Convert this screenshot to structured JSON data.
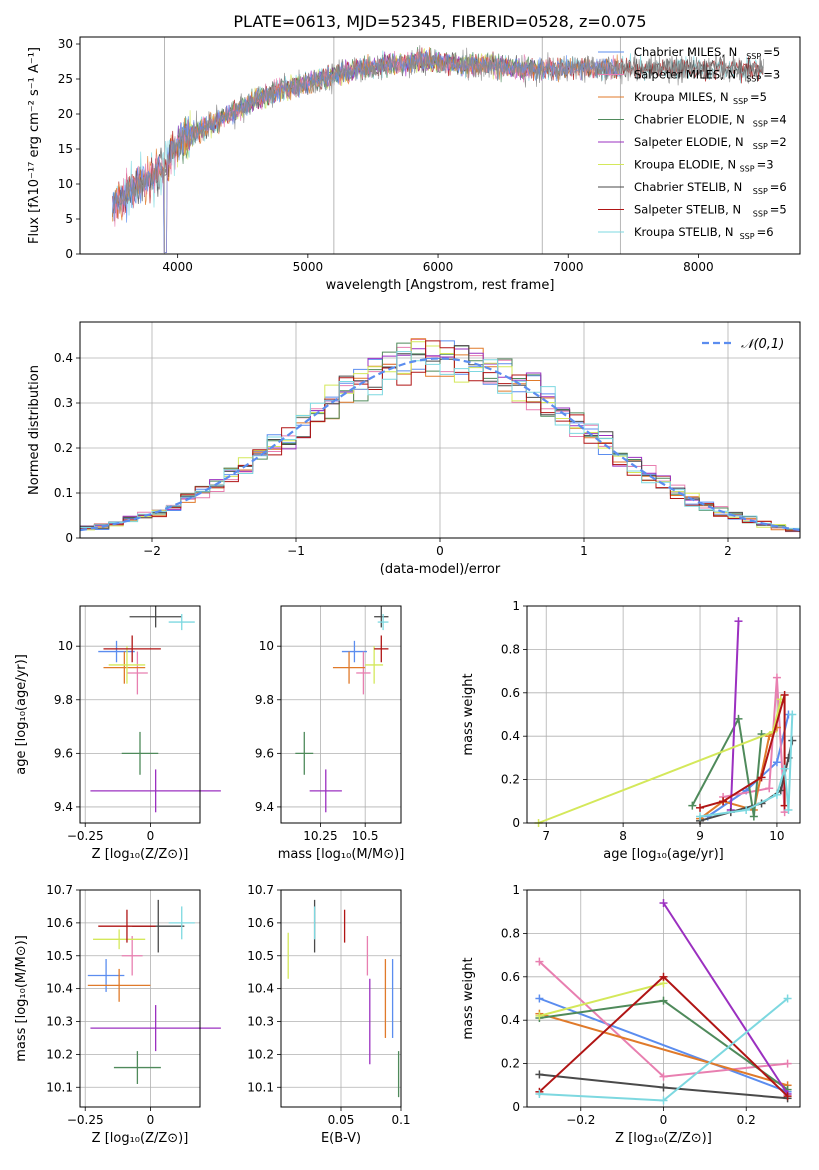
{
  "figure": {
    "title": "PLATE=0613, MJD=52345, FIBERID=0528, z=0.075"
  },
  "colors": {
    "Chabrier MILES": "#5b8def",
    "Salpeter MILES": "#e87fb0",
    "Kroupa MILES": "#e07a2a",
    "Chabrier ELODIE": "#4f8a5b",
    "Salpeter ELODIE": "#9b30c0",
    "Kroupa ELODIE": "#d4e85a",
    "Chabrier STELIB": "#4a4a4a",
    "Salpeter STELIB": "#b01515",
    "Kroupa STELIB": "#7dd8e0"
  },
  "chart_data": [
    {
      "id": "spectrum",
      "type": "line",
      "xlabel": "wavelength [Angstrom, rest frame]",
      "ylabel": "Flux [fλ10⁻¹⁷ erg cm⁻² s⁻¹ A⁻¹]",
      "xlim": [
        3250,
        8780
      ],
      "ylim": [
        0,
        31
      ],
      "xticks": [
        4000,
        5000,
        6000,
        7000,
        8000
      ],
      "yticks": [
        0,
        5,
        10,
        15,
        20,
        25,
        30
      ],
      "legend_position": "right",
      "grid": false,
      "legend": [
        {
          "name": "Chabrier MILES",
          "nssp": "5"
        },
        {
          "name": "Salpeter MILES",
          "nssp": "3"
        },
        {
          "name": "Kroupa MILES",
          "nssp": "5"
        },
        {
          "name": "Chabrier ELODIE",
          "nssp": "4"
        },
        {
          "name": "Salpeter ELODIE",
          "nssp": "2"
        },
        {
          "name": "Kroupa ELODIE",
          "nssp": "3"
        },
        {
          "name": "Chabrier STELIB",
          "nssp": "6"
        },
        {
          "name": "Salpeter STELIB",
          "nssp": "5"
        },
        {
          "name": "Kroupa STELIB",
          "nssp": "6"
        }
      ],
      "data_continuum": {
        "x": [
          3500,
          3700,
          3900,
          4000,
          4200,
          4400,
          4600,
          4800,
          5000,
          5200,
          5400,
          5600,
          5800,
          6000,
          6200,
          6400,
          6600,
          6800,
          7000,
          7200,
          7400
        ],
        "y": [
          7,
          10,
          12,
          16,
          18,
          20,
          22,
          23.5,
          24.5,
          25.5,
          26.5,
          27,
          27.5,
          27.5,
          27,
          27,
          26.5,
          26.5,
          26.5,
          26.5,
          26.5
        ]
      },
      "model_ranges": [
        {
          "name": "MILES",
          "x": [
            3500,
            7400
          ]
        },
        {
          "name": "ELODIE",
          "x": [
            4000,
            6800
          ]
        },
        {
          "name": "STELIB",
          "x": [
            3500,
            8500
          ]
        }
      ]
    },
    {
      "id": "residuals",
      "type": "histogram",
      "xlabel": "(data-model)/error",
      "ylabel": "Normed distribution",
      "xlim": [
        -2.5,
        2.5
      ],
      "ylim": [
        0,
        0.48
      ],
      "xticks": [
        -2,
        -1,
        0,
        1,
        2
      ],
      "yticks": [
        0,
        0.1,
        0.2,
        0.3,
        0.4
      ],
      "grid": true,
      "legend_label": "𝒩(0,1)",
      "reference": {
        "name": "N(0,1)",
        "mean": 0,
        "sigma": 1
      }
    },
    {
      "id": "age_vs_Z",
      "type": "errorbar",
      "xlabel": "Z [log₁₀(Z/Z⊙)]",
      "ylabel": "age  [log₁₀(age/yr)]",
      "xlim": [
        -0.27,
        0.19
      ],
      "ylim": [
        9.34,
        10.15
      ],
      "xticks": [
        -0.25,
        0.0
      ],
      "yticks": [
        9.4,
        9.6,
        9.8,
        10.0
      ],
      "grid": true,
      "points": [
        {
          "model": "Chabrier MILES",
          "x": -0.13,
          "y": 9.98,
          "xerr": 0.07,
          "yerr": 0.04
        },
        {
          "model": "Salpeter MILES",
          "x": -0.05,
          "y": 9.9,
          "xerr": 0.04,
          "yerr": 0.08
        },
        {
          "model": "Kroupa MILES",
          "x": -0.1,
          "y": 9.92,
          "xerr": 0.08,
          "yerr": 0.06
        },
        {
          "model": "Chabrier ELODIE",
          "x": -0.04,
          "y": 9.6,
          "xerr": 0.07,
          "yerr": 0.08
        },
        {
          "model": "Salpeter ELODIE",
          "x": 0.02,
          "y": 9.46,
          "xerr": 0.25,
          "yerr": 0.08
        },
        {
          "model": "Kroupa ELODIE",
          "x": -0.09,
          "y": 9.93,
          "xerr": 0.07,
          "yerr": 0.07
        },
        {
          "model": "Chabrier STELIB",
          "x": 0.02,
          "y": 10.11,
          "xerr": 0.1,
          "yerr": 0.04
        },
        {
          "model": "Salpeter STELIB",
          "x": -0.07,
          "y": 9.99,
          "xerr": 0.11,
          "yerr": 0.05
        },
        {
          "model": "Kroupa STELIB",
          "x": 0.12,
          "y": 10.09,
          "xerr": 0.05,
          "yerr": 0.03
        }
      ]
    },
    {
      "id": "age_vs_mass",
      "type": "errorbar",
      "xlabel": "mass [log₁₀(M/M⊙)]",
      "ylabel": "",
      "xlim": [
        10.03,
        10.7
      ],
      "ylim": [
        9.34,
        10.15
      ],
      "xticks": [
        10.25,
        10.5
      ],
      "yticks": [
        9.4,
        9.6,
        9.8,
        10.0
      ],
      "grid": true,
      "points": [
        {
          "model": "Chabrier MILES",
          "x": 10.44,
          "y": 9.98,
          "xerr": 0.07,
          "yerr": 0.04
        },
        {
          "model": "Salpeter MILES",
          "x": 10.49,
          "y": 9.9,
          "xerr": 0.04,
          "yerr": 0.08
        },
        {
          "model": "Kroupa MILES",
          "x": 10.41,
          "y": 9.92,
          "xerr": 0.09,
          "yerr": 0.06
        },
        {
          "model": "Chabrier ELODIE",
          "x": 10.16,
          "y": 9.6,
          "xerr": 0.05,
          "yerr": 0.08
        },
        {
          "model": "Salpeter ELODIE",
          "x": 10.28,
          "y": 9.46,
          "xerr": 0.09,
          "yerr": 0.08
        },
        {
          "model": "Kroupa ELODIE",
          "x": 10.55,
          "y": 9.93,
          "xerr": 0.05,
          "yerr": 0.07
        },
        {
          "model": "Chabrier STELIB",
          "x": 10.59,
          "y": 10.11,
          "xerr": 0.04,
          "yerr": 0.04
        },
        {
          "model": "Salpeter STELIB",
          "x": 10.59,
          "y": 9.99,
          "xerr": 0.04,
          "yerr": 0.05
        },
        {
          "model": "Kroupa STELIB",
          "x": 10.6,
          "y": 10.09,
          "xerr": 0.03,
          "yerr": 0.03
        }
      ]
    },
    {
      "id": "weight_vs_age",
      "type": "line",
      "xlabel": "age  [log₁₀(age/yr)]",
      "ylabel": "mass weight",
      "xlim": [
        6.75,
        10.3
      ],
      "ylim": [
        0,
        1
      ],
      "xticks": [
        7,
        8,
        9,
        10
      ],
      "yticks": [
        0,
        0.2,
        0.4,
        0.6,
        0.8,
        1.0
      ],
      "grid": true,
      "series": [
        {
          "name": "Chabrier MILES",
          "x": [
            9.1,
            9.6,
            10.0,
            10.15
          ],
          "y": [
            0.03,
            0.15,
            0.28,
            0.5
          ]
        },
        {
          "name": "Salpeter MILES",
          "x": [
            9.3,
            9.9,
            10.0,
            10.1
          ],
          "y": [
            0.12,
            0.16,
            0.67,
            0.05
          ]
        },
        {
          "name": "Kroupa MILES",
          "x": [
            9.0,
            9.3,
            9.7,
            9.9,
            10.0
          ],
          "y": [
            0.02,
            0.1,
            0.06,
            0.4,
            0.44
          ]
        },
        {
          "name": "Chabrier ELODIE",
          "x": [
            8.9,
            9.5,
            9.7,
            9.8
          ],
          "y": [
            0.08,
            0.48,
            0.03,
            0.41
          ]
        },
        {
          "name": "Salpeter ELODIE",
          "x": [
            9.4,
            9.5
          ],
          "y": [
            0.06,
            0.93
          ]
        },
        {
          "name": "Kroupa ELODIE",
          "x": [
            6.9,
            9.95,
            10.05
          ],
          "y": [
            0.0,
            0.42,
            0.57
          ]
        },
        {
          "name": "Chabrier STELIB",
          "x": [
            9.0,
            9.4,
            9.8,
            10.05,
            10.15,
            10.2
          ],
          "y": [
            0.01,
            0.05,
            0.09,
            0.15,
            0.3,
            0.38
          ]
        },
        {
          "name": "Salpeter STELIB",
          "x": [
            9.0,
            9.3,
            9.8,
            10.1,
            10.1
          ],
          "y": [
            0.07,
            0.1,
            0.21,
            0.59,
            0.08
          ]
        },
        {
          "name": "Kroupa STELIB",
          "x": [
            9.0,
            9.6,
            10.0,
            10.1,
            10.15,
            10.2
          ],
          "y": [
            0.03,
            0.06,
            0.13,
            0.25,
            0.06,
            0.5
          ]
        }
      ]
    },
    {
      "id": "mass_vs_Z",
      "type": "errorbar",
      "xlabel": "Z [log₁₀(Z/Z⊙)]",
      "ylabel": "mass [log₁₀(M/M⊙)]",
      "xlim": [
        -0.27,
        0.19
      ],
      "ylim": [
        10.04,
        10.7
      ],
      "xticks": [
        -0.25,
        0.0
      ],
      "yticks": [
        10.1,
        10.2,
        10.3,
        10.4,
        10.5,
        10.6,
        10.7
      ],
      "grid": true,
      "points": [
        {
          "model": "Chabrier MILES",
          "x": -0.17,
          "y": 10.44,
          "xerr": 0.07,
          "yerr": 0.05
        },
        {
          "model": "Salpeter MILES",
          "x": -0.07,
          "y": 10.5,
          "xerr": 0.04,
          "yerr": 0.06
        },
        {
          "model": "Kroupa MILES",
          "x": -0.12,
          "y": 10.41,
          "xerr": 0.12,
          "yerr": 0.05
        },
        {
          "model": "Chabrier ELODIE",
          "x": -0.05,
          "y": 10.16,
          "xerr": 0.09,
          "yerr": 0.05
        },
        {
          "model": "Salpeter ELODIE",
          "x": 0.02,
          "y": 10.28,
          "xerr": 0.25,
          "yerr": 0.07
        },
        {
          "model": "Kroupa ELODIE",
          "x": -0.12,
          "y": 10.55,
          "xerr": 0.1,
          "yerr": 0.03
        },
        {
          "model": "Chabrier STELIB",
          "x": 0.03,
          "y": 10.59,
          "xerr": 0.1,
          "yerr": 0.08
        },
        {
          "model": "Salpeter STELIB",
          "x": -0.09,
          "y": 10.59,
          "xerr": 0.11,
          "yerr": 0.05
        },
        {
          "model": "Kroupa STELIB",
          "x": 0.12,
          "y": 10.6,
          "xerr": 0.05,
          "yerr": 0.05
        }
      ]
    },
    {
      "id": "mass_vs_ebv",
      "type": "errorbar",
      "xlabel": "E(B-V)",
      "ylabel": "",
      "xlim": [
        0.0,
        0.1
      ],
      "ylim": [
        10.04,
        10.7
      ],
      "xticks": [
        0.05,
        0.1
      ],
      "yticks": [
        10.1,
        10.2,
        10.3,
        10.4,
        10.5,
        10.6,
        10.7
      ],
      "grid": true,
      "points": [
        {
          "model": "Kroupa ELODIE",
          "x": 0.006,
          "y": 10.5,
          "xerr": 0,
          "yerr": 0.07
        },
        {
          "model": "Chabrier STELIB",
          "x": 0.028,
          "y": 10.59,
          "xerr": 0,
          "yerr": 0.08
        },
        {
          "model": "Kroupa STELIB",
          "x": 0.028,
          "y": 10.6,
          "xerr": 0,
          "yerr": 0.05
        },
        {
          "model": "Salpeter STELIB",
          "x": 0.053,
          "y": 10.59,
          "xerr": 0,
          "yerr": 0.05
        },
        {
          "model": "Salpeter MILES",
          "x": 0.072,
          "y": 10.5,
          "xerr": 0,
          "yerr": 0.06
        },
        {
          "model": "Salpeter ELODIE",
          "x": 0.074,
          "y": 10.3,
          "xerr": 0,
          "yerr": 0.13
        },
        {
          "model": "Kroupa MILES",
          "x": 0.087,
          "y": 10.37,
          "xerr": 0,
          "yerr": 0.12
        },
        {
          "model": "Chabrier MILES",
          "x": 0.093,
          "y": 10.37,
          "xerr": 0,
          "yerr": 0.12
        },
        {
          "model": "Chabrier ELODIE",
          "x": 0.098,
          "y": 10.14,
          "xerr": 0,
          "yerr": 0.07
        }
      ]
    },
    {
      "id": "weight_vs_Z",
      "type": "line",
      "xlabel": "Z [log₁₀(Z/Z⊙)]",
      "ylabel": "mass weight",
      "xlim": [
        -0.33,
        0.33
      ],
      "ylim": [
        0,
        1
      ],
      "xticks": [
        -0.2,
        0.0,
        0.2
      ],
      "yticks": [
        0,
        0.2,
        0.4,
        0.6,
        0.8,
        1.0
      ],
      "grid": true,
      "series": [
        {
          "name": "Chabrier MILES",
          "x": [
            -0.3,
            0.3
          ],
          "y": [
            0.5,
            0.07
          ]
        },
        {
          "name": "Salpeter MILES",
          "x": [
            -0.3,
            0.0,
            0.3
          ],
          "y": [
            0.67,
            0.14,
            0.2
          ]
        },
        {
          "name": "Kroupa MILES",
          "x": [
            -0.3,
            0.3
          ],
          "y": [
            0.43,
            0.1
          ]
        },
        {
          "name": "Chabrier ELODIE",
          "x": [
            -0.3,
            0.0,
            0.3
          ],
          "y": [
            0.41,
            0.49,
            0.08
          ]
        },
        {
          "name": "Salpeter ELODIE",
          "x": [
            0.0,
            0.3
          ],
          "y": [
            0.94,
            0.06
          ]
        },
        {
          "name": "Kroupa ELODIE",
          "x": [
            -0.3,
            0.0
          ],
          "y": [
            0.42,
            0.57
          ]
        },
        {
          "name": "Chabrier STELIB",
          "x": [
            -0.3,
            0.0,
            0.3
          ],
          "y": [
            0.15,
            0.09,
            0.04
          ]
        },
        {
          "name": "Salpeter STELIB",
          "x": [
            -0.3,
            0.0,
            0.3
          ],
          "y": [
            0.07,
            0.6,
            0.05
          ]
        },
        {
          "name": "Kroupa STELIB",
          "x": [
            -0.3,
            0.0,
            0.3
          ],
          "y": [
            0.06,
            0.03,
            0.5
          ]
        }
      ]
    }
  ]
}
